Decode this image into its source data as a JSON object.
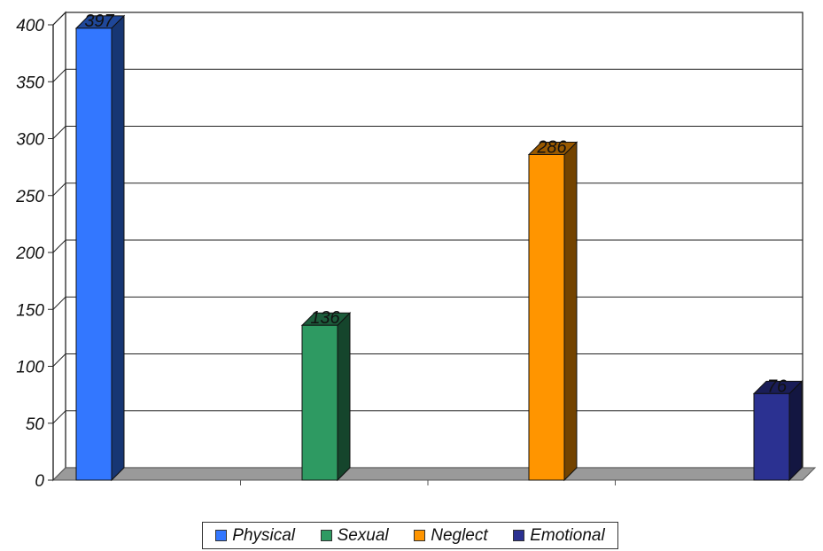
{
  "chart_data": {
    "type": "bar",
    "categories": [
      "Physical",
      "Sexual",
      "Neglect",
      "Emotional"
    ],
    "values": [
      397,
      136,
      286,
      76
    ],
    "data_labels": [
      "397",
      "136",
      "286",
      "76"
    ],
    "ylim": [
      0,
      400
    ],
    "yticks": [
      "0",
      "50",
      "100",
      "150",
      "200",
      "250",
      "300",
      "350",
      "400"
    ],
    "grid": true,
    "legend_position": "bottom",
    "three_d": true,
    "colors": {
      "Physical": "#3377ff",
      "Sexual": "#2e9a62",
      "Neglect": "#ff9500",
      "Emotional": "#2b3191",
      "floor": "#9a9a9a"
    }
  }
}
